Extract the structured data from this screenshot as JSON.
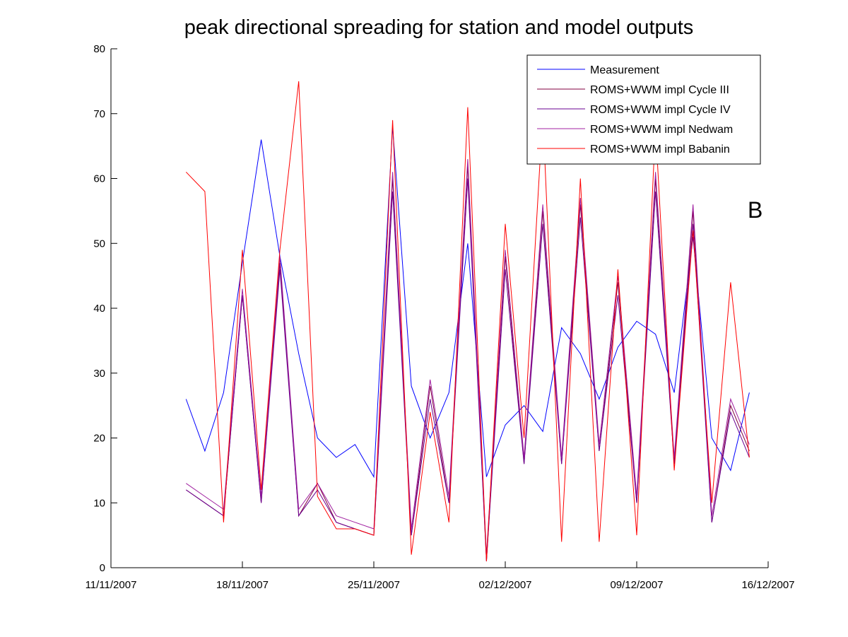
{
  "chart_data": {
    "type": "line",
    "title": "peak directional spreading for station and model outputs",
    "annotation": "B",
    "x_axis": {
      "type": "date",
      "range": [
        "11/11/2007",
        "16/12/2007"
      ],
      "ticks": [
        "11/11/2007",
        "18/11/2007",
        "25/11/2007",
        "02/12/2007",
        "09/12/2007",
        "16/12/2007"
      ]
    },
    "y_axis": {
      "range": [
        0,
        80
      ],
      "ticks": [
        "0",
        "10",
        "20",
        "30",
        "40",
        "50",
        "60",
        "70",
        "80"
      ]
    },
    "grid": false,
    "legend_position": "top-right",
    "x_dates": [
      "15/11/2007",
      "16/11/2007",
      "17/11/2007",
      "18/11/2007",
      "19/11/2007",
      "20/11/2007",
      "21/11/2007",
      "22/11/2007",
      "23/11/2007",
      "24/11/2007",
      "25/11/2007",
      "26/11/2007",
      "27/11/2007",
      "28/11/2007",
      "29/11/2007",
      "30/11/2007",
      "01/12/2007",
      "02/12/2007",
      "03/12/2007",
      "04/12/2007",
      "05/12/2007",
      "06/12/2007",
      "07/12/2007",
      "08/12/2007",
      "09/12/2007",
      "10/12/2007",
      "11/12/2007",
      "12/12/2007",
      "13/12/2007",
      "14/12/2007",
      "15/12/2007"
    ],
    "series": [
      {
        "name": "Measurement",
        "color": "#0000ff",
        "values": [
          26,
          18,
          27,
          47,
          66,
          48,
          33,
          20,
          17,
          19,
          14,
          68,
          28,
          20,
          27,
          50,
          14,
          22,
          25,
          21,
          37,
          33,
          26,
          34,
          38,
          36,
          27,
          51,
          20,
          15,
          27
        ]
      },
      {
        "name": "ROMS+WWM impl Cycle III",
        "color": "#800040",
        "values": [
          12,
          10,
          8,
          42,
          10,
          47,
          8,
          13,
          7,
          6,
          5,
          60,
          5,
          28,
          10,
          62,
          1,
          48,
          16,
          55,
          16,
          56,
          18,
          44,
          10,
          60,
          16,
          55,
          7,
          25,
          18
        ]
      },
      {
        "name": "ROMS+WWM impl Cycle IV",
        "color": "#6a0090",
        "values": [
          12,
          10,
          8,
          42,
          10,
          46,
          8,
          12,
          7,
          6,
          5,
          58,
          5,
          26,
          10,
          60,
          1,
          46,
          16,
          53,
          16,
          54,
          18,
          42,
          10,
          58,
          16,
          53,
          7,
          24,
          17
        ]
      },
      {
        "name": "ROMS+WWM impl Nedwam",
        "color": "#a020a0",
        "values": [
          13,
          11,
          9,
          43,
          11,
          48,
          9,
          13,
          8,
          7,
          6,
          61,
          6,
          29,
          11,
          63,
          2,
          49,
          17,
          56,
          17,
          57,
          19,
          45,
          11,
          61,
          17,
          56,
          8,
          26,
          19
        ]
      },
      {
        "name": "ROMS+WWM impl Babanin",
        "color": "#ff0000",
        "values": [
          61,
          58,
          7,
          49,
          12,
          49,
          75,
          11,
          6,
          6,
          5,
          69,
          2,
          24,
          7,
          71,
          1,
          53,
          20,
          70,
          4,
          60,
          4,
          46,
          5,
          68,
          15,
          52,
          10,
          44,
          17
        ]
      }
    ]
  }
}
